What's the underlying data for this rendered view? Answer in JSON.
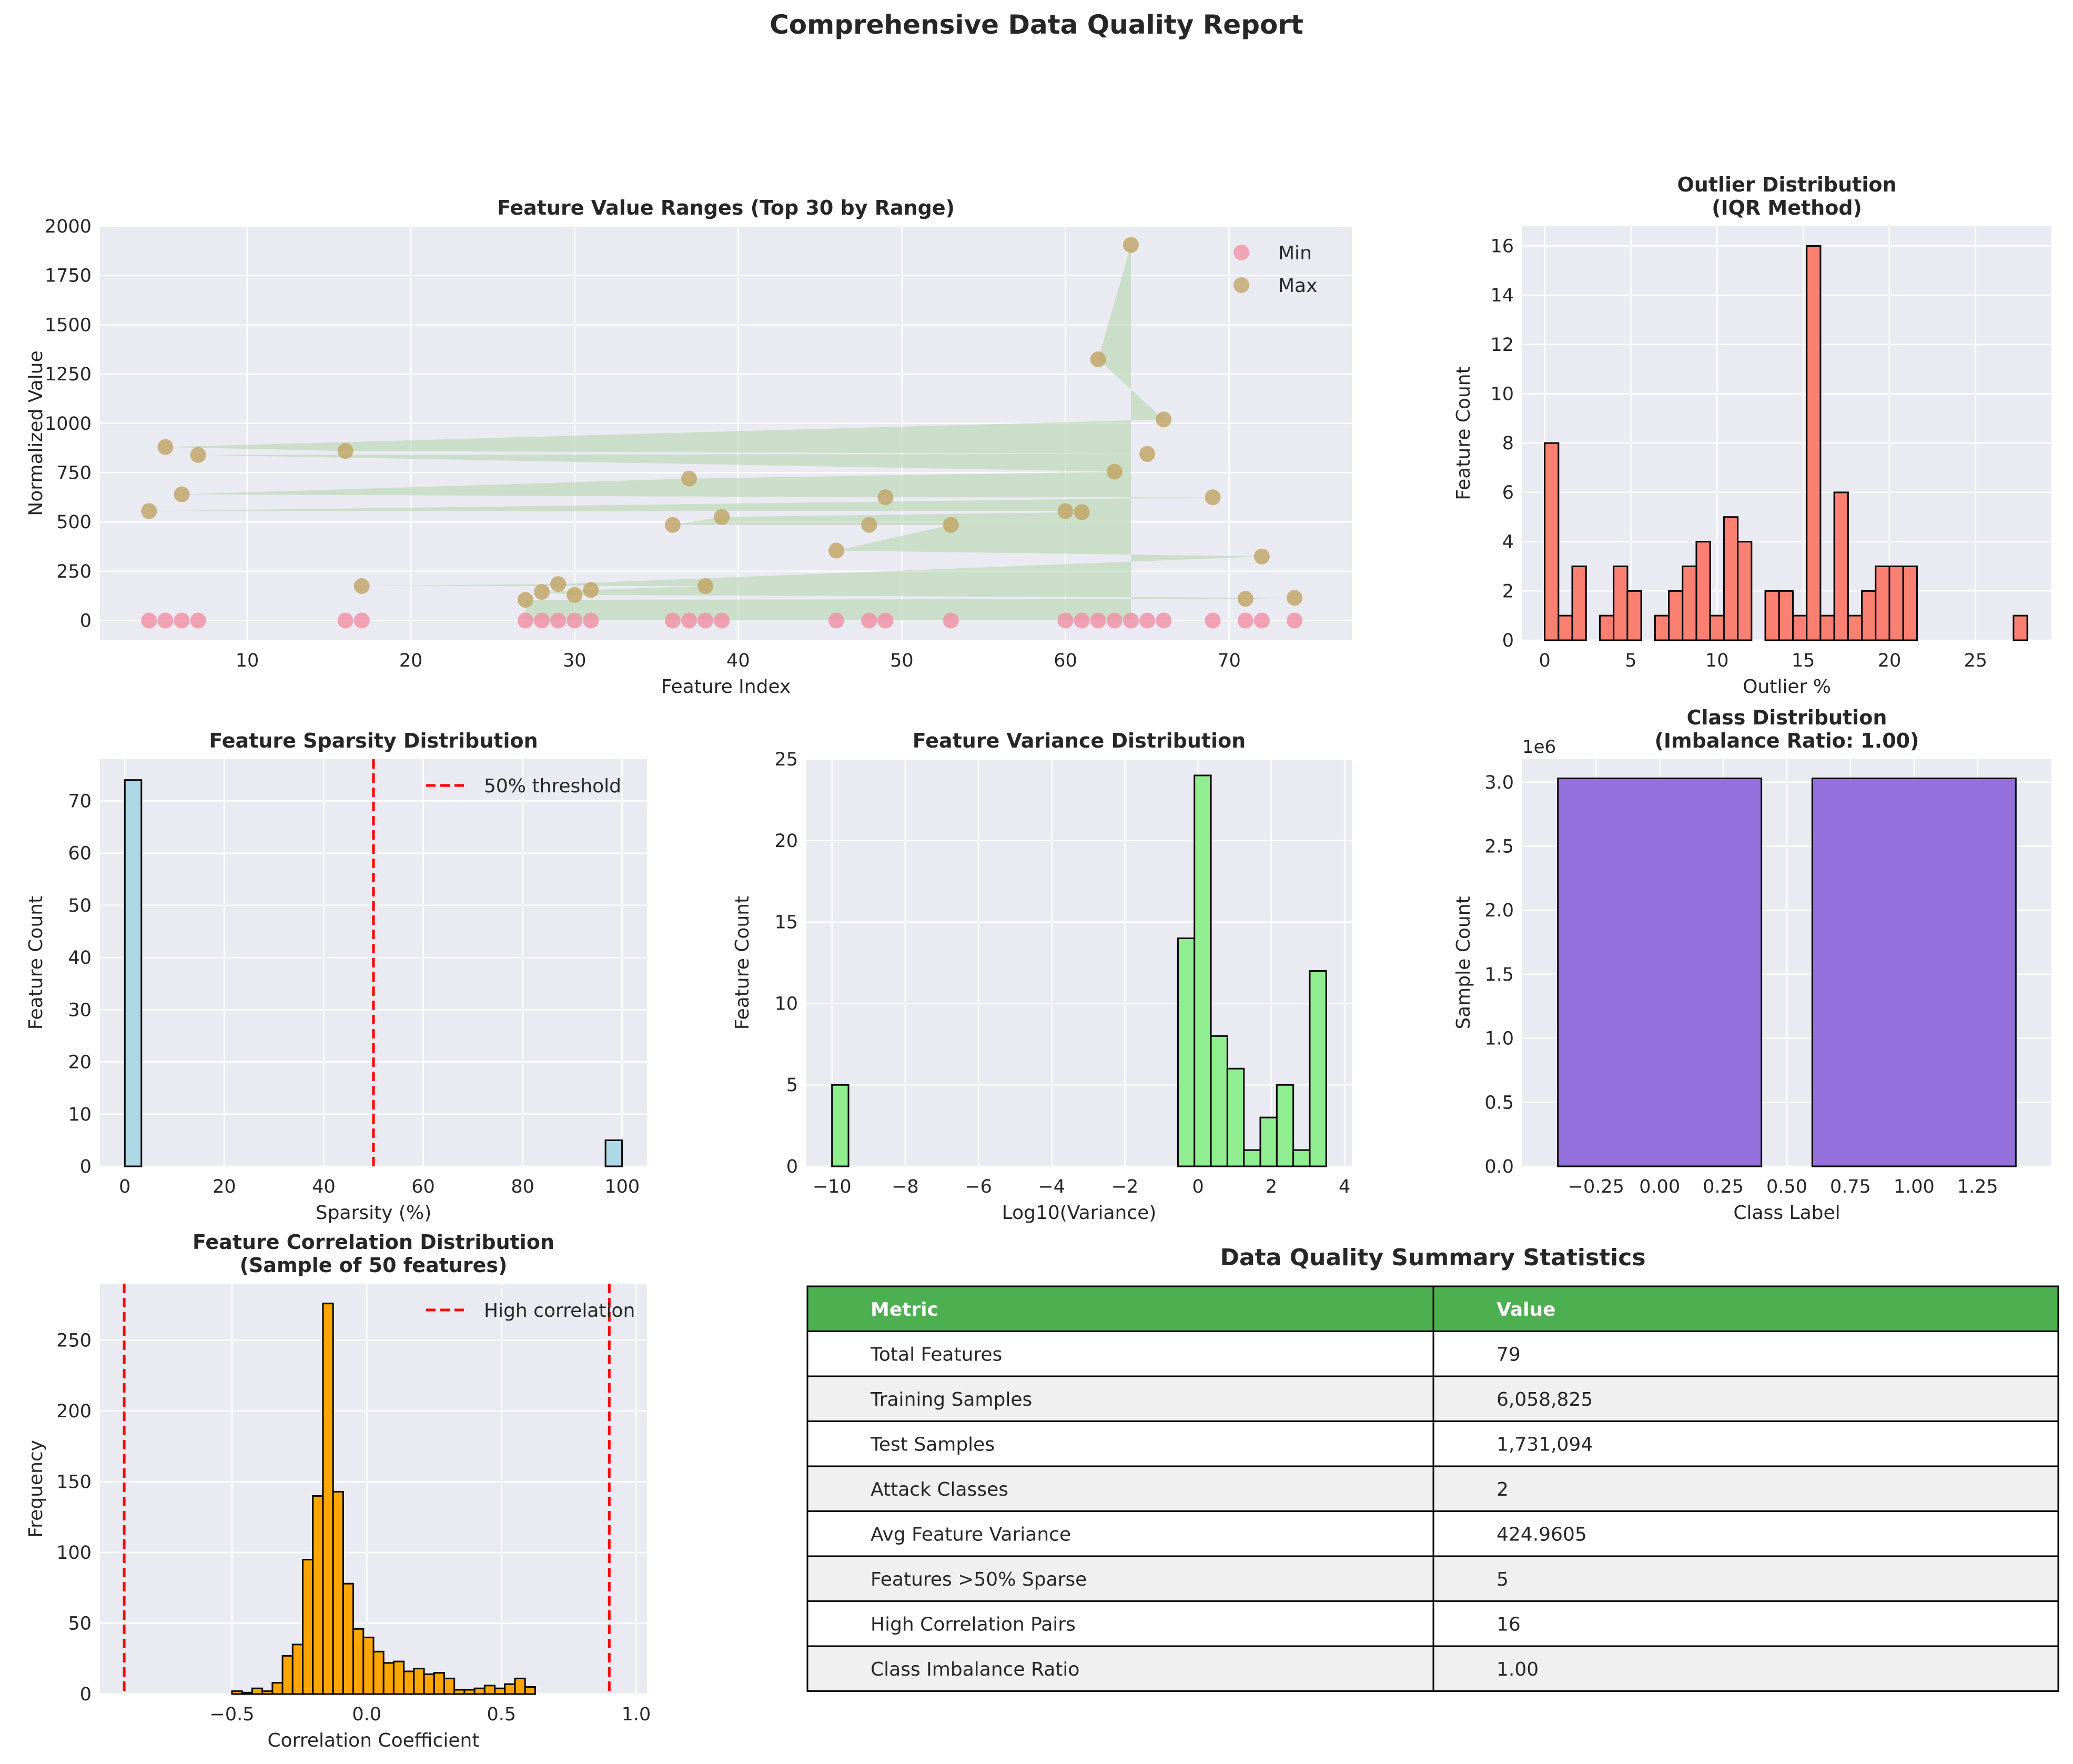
{
  "suptitle": "Comprehensive Data Quality Report",
  "colors": {
    "axes_bg": "#eaeaf2",
    "grid": "#ffffff",
    "text": "#262626",
    "min_marker": "#f08fa3",
    "max_marker": "#bfa260",
    "range_fill": "#b5d6ad",
    "outlier_bars": "#fa8072",
    "sparsity_bars": "#add8e6",
    "variance_bars": "#90ee90",
    "class_bars": "#9370db",
    "correlation_bars": "#ffa500",
    "threshold_line": "#ff0000",
    "table_header": "#4caf50",
    "table_header_text": "#ffffff",
    "table_alt_row": "#f0f0f0"
  },
  "chart_data": [
    {
      "id": "ranges",
      "type": "scatter",
      "title": "Feature Value Ranges (Top 30 by Range)",
      "xlabel": "Feature Index",
      "ylabel": "Normalized Value",
      "xlim": [
        1,
        77.5
      ],
      "ylim": [
        -100,
        2000
      ],
      "xticks": [
        10,
        20,
        30,
        40,
        50,
        60,
        70
      ],
      "yticks": [
        0,
        250,
        500,
        750,
        1000,
        1250,
        1500,
        1750,
        2000
      ],
      "legend_position": "top-right",
      "fill_between": true,
      "series": [
        {
          "name": "Min",
          "x": [
            4,
            5,
            6,
            7,
            16,
            17,
            27,
            28,
            29,
            30,
            31,
            36,
            37,
            38,
            39,
            46,
            48,
            49,
            53,
            60,
            61,
            62,
            63,
            64,
            65,
            66,
            69,
            71,
            72,
            74
          ],
          "y": [
            0,
            0,
            0,
            0,
            0,
            0,
            0,
            0,
            0,
            0,
            0,
            0,
            0,
            0,
            0,
            0,
            0,
            0,
            0,
            0,
            0,
            0,
            0,
            0,
            0,
            0,
            0,
            0,
            0,
            0
          ]
        },
        {
          "name": "Max",
          "x": [
            64,
            62,
            66,
            5,
            16,
            65,
            7,
            63,
            37,
            6,
            49,
            69,
            4,
            60,
            61,
            39,
            36,
            48,
            53,
            46,
            72,
            29,
            17,
            38,
            31,
            28,
            30,
            74,
            71,
            27
          ],
          "y": [
            1905,
            1325,
            1020,
            880,
            860,
            845,
            840,
            755,
            720,
            640,
            625,
            625,
            555,
            555,
            550,
            525,
            485,
            485,
            485,
            355,
            325,
            185,
            175,
            175,
            155,
            145,
            130,
            115,
            110,
            105
          ]
        }
      ]
    },
    {
      "id": "outliers",
      "type": "bar",
      "title": "Outlier Distribution\n(IQR Method)",
      "xlabel": "Outlier %",
      "ylabel": "Feature Count",
      "xlim": [
        -1.3,
        29.4
      ],
      "ylim": [
        0,
        16.8
      ],
      "xticks": [
        0,
        5,
        10,
        15,
        20,
        25
      ],
      "yticks": [
        0,
        2,
        4,
        6,
        8,
        10,
        12,
        14,
        16
      ],
      "bin_start": 0,
      "bin_width": 0.8,
      "counts": [
        8,
        1,
        3,
        0,
        1,
        3,
        2,
        0,
        1,
        2,
        3,
        4,
        1,
        5,
        4,
        0,
        2,
        2,
        1,
        16,
        1,
        6,
        1,
        2,
        3,
        3,
        3,
        0,
        0,
        0,
        0,
        0,
        0,
        0,
        1
      ]
    },
    {
      "id": "sparsity",
      "type": "bar",
      "title": "Feature Sparsity Distribution",
      "xlabel": "Sparsity (%)",
      "ylabel": "Feature Count",
      "xlim": [
        -5,
        105
      ],
      "ylim": [
        0,
        78
      ],
      "xticks": [
        0,
        20,
        40,
        60,
        80,
        100
      ],
      "yticks": [
        0,
        10,
        20,
        30,
        40,
        50,
        60,
        70
      ],
      "bin_start": 0,
      "bin_width": 3.333,
      "counts": [
        74,
        0,
        0,
        0,
        0,
        0,
        0,
        0,
        0,
        0,
        0,
        0,
        0,
        0,
        0,
        0,
        0,
        0,
        0,
        0,
        0,
        0,
        0,
        0,
        0,
        0,
        0,
        0,
        0,
        5
      ],
      "threshold": {
        "value": 50,
        "label": "50% threshold"
      },
      "legend_position": "top-right"
    },
    {
      "id": "variance",
      "type": "bar",
      "title": "Feature Variance Distribution",
      "xlabel": "Log10(Variance)",
      "ylabel": "Feature Count",
      "xlim": [
        -10.7,
        4.2
      ],
      "ylim": [
        0,
        25
      ],
      "xticks": [
        -10,
        -8,
        -6,
        -4,
        -2,
        0,
        2,
        4
      ],
      "yticks": [
        0,
        5,
        10,
        15,
        20,
        25
      ],
      "bin_start": -10,
      "bin_width": 0.45,
      "counts": [
        5,
        0,
        0,
        0,
        0,
        0,
        0,
        0,
        0,
        0,
        0,
        0,
        0,
        0,
        0,
        0,
        0,
        0,
        0,
        0,
        0,
        14,
        24,
        8,
        6,
        1,
        3,
        5,
        1,
        12
      ]
    },
    {
      "id": "classes",
      "type": "bar",
      "title": "Class Distribution\n(Imbalance Ratio: 1.00)",
      "xlabel": "Class Label",
      "ylabel": "Sample Count",
      "offset_text": "1e6",
      "xlim": [
        -0.54,
        1.54
      ],
      "ylim": [
        0,
        3.18
      ],
      "xticks": [
        -0.25,
        0.0,
        0.25,
        0.5,
        0.75,
        1.0,
        1.25
      ],
      "tick_labels": [
        "−0.25",
        "0.00",
        "0.25",
        "0.50",
        "0.75",
        "1.00",
        "1.25"
      ],
      "yticks": [
        0,
        0.5,
        1.0,
        1.5,
        2.0,
        2.5,
        3.0
      ],
      "ytick_labels": [
        "0.0",
        "0.5",
        "1.0",
        "1.5",
        "2.0",
        "2.5",
        "3.0"
      ],
      "categories": [
        0,
        1
      ],
      "values": [
        3.03,
        3.03
      ],
      "bar_width": 0.8
    },
    {
      "id": "correlation",
      "type": "bar",
      "title": "Feature Correlation Distribution\n(Sample of 50 features)",
      "xlabel": "Correlation Coefficient",
      "ylabel": "Frequency",
      "xlim": [
        -0.99,
        1.04
      ],
      "ylim": [
        0,
        290
      ],
      "xticks": [
        -0.5,
        0.0,
        0.5,
        1.0
      ],
      "tick_labels": [
        "−0.5",
        "0.0",
        "0.5",
        "1.0"
      ],
      "yticks": [
        0,
        50,
        100,
        150,
        200,
        250
      ],
      "bin_start": -0.5,
      "bin_width": 0.0375,
      "counts": [
        2,
        1,
        4,
        2,
        8,
        27,
        35,
        95,
        140,
        276,
        143,
        78,
        46,
        40,
        30,
        22,
        23,
        16,
        18,
        14,
        15,
        11,
        3,
        3,
        4,
        6,
        4,
        7,
        11,
        5
      ],
      "threshold_lines": [
        -0.9,
        0.9
      ],
      "threshold_label": "High correlation",
      "legend_position": "top-right"
    }
  ],
  "summary_table": {
    "title": "Data Quality Summary Statistics",
    "headers": [
      "Metric",
      "Value"
    ],
    "rows": [
      [
        "Total Features",
        "79"
      ],
      [
        "Training Samples",
        "6,058,825"
      ],
      [
        "Test Samples",
        "1,731,094"
      ],
      [
        "Attack Classes",
        "2"
      ],
      [
        "Avg Feature Variance",
        "424.9605"
      ],
      [
        "Features >50% Sparse",
        "5"
      ],
      [
        "High Correlation Pairs",
        "16"
      ],
      [
        "Class Imbalance Ratio",
        "1.00"
      ]
    ]
  }
}
